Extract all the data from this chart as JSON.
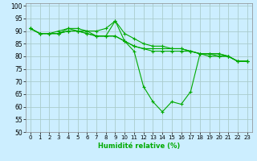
{
  "title": "",
  "xlabel": "Humidité relative (%)",
  "ylabel": "",
  "background_color": "#cceeff",
  "grid_color": "#aacccc",
  "line_color": "#00aa00",
  "marker": "+",
  "xlim": [
    -0.5,
    23.5
  ],
  "ylim": [
    50,
    101
  ],
  "yticks": [
    50,
    55,
    60,
    65,
    70,
    75,
    80,
    85,
    90,
    95,
    100
  ],
  "xticks": [
    0,
    1,
    2,
    3,
    4,
    5,
    6,
    7,
    8,
    9,
    10,
    11,
    12,
    13,
    14,
    15,
    16,
    17,
    18,
    19,
    20,
    21,
    22,
    23
  ],
  "series": [
    [
      91,
      89,
      89,
      89,
      91,
      91,
      90,
      90,
      91,
      94,
      89,
      87,
      85,
      84,
      84,
      83,
      83,
      82,
      81,
      81,
      80,
      80,
      78,
      78
    ],
    [
      91,
      89,
      89,
      90,
      91,
      90,
      90,
      88,
      88,
      94,
      86,
      84,
      83,
      82,
      82,
      82,
      82,
      82,
      81,
      80,
      80,
      80,
      78,
      78
    ],
    [
      91,
      89,
      89,
      89,
      90,
      90,
      89,
      88,
      88,
      88,
      86,
      82,
      68,
      62,
      58,
      62,
      61,
      66,
      81,
      81,
      81,
      80,
      78,
      78
    ],
    [
      91,
      89,
      89,
      89,
      90,
      90,
      89,
      88,
      88,
      88,
      86,
      84,
      83,
      83,
      83,
      83,
      83,
      82,
      81,
      81,
      81,
      80,
      78,
      78
    ]
  ]
}
